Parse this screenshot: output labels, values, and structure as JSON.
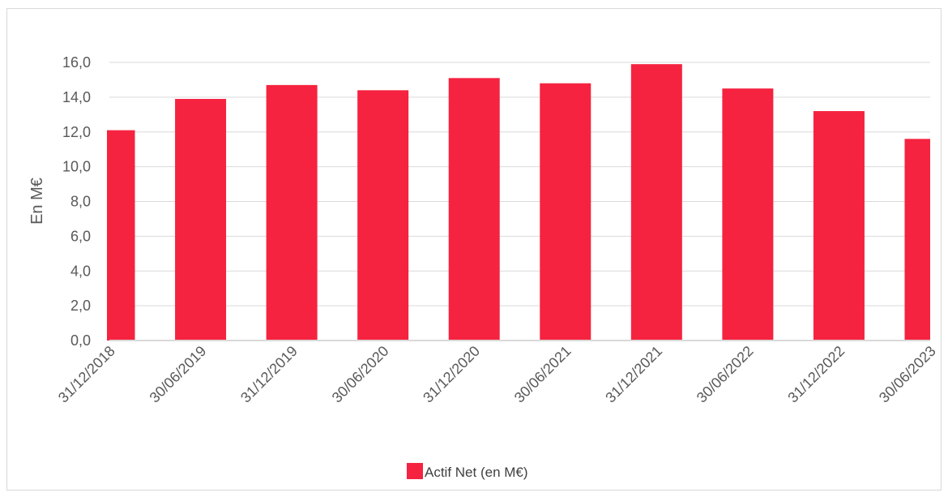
{
  "chart_data": {
    "type": "bar",
    "categories": [
      "31/12/2018",
      "30/06/2019",
      "31/12/2019",
      "30/06/2020",
      "31/12/2020",
      "30/06/2021",
      "31/12/2021",
      "30/06/2022",
      "31/12/2022",
      "30/06/2023"
    ],
    "series": [
      {
        "name": "Actif Net (en M€)",
        "values": [
          12.1,
          13.9,
          14.7,
          14.4,
          15.1,
          14.8,
          15.9,
          14.5,
          13.2,
          11.6
        ]
      }
    ],
    "yticks": [
      "0,0",
      "2,0",
      "4,0",
      "6,0",
      "8,0",
      "10,0",
      "12,0",
      "14,0",
      "16,0"
    ],
    "ylabel": "En M€",
    "ylim": [
      0,
      16
    ],
    "grid": true,
    "legend_position": "bottom",
    "colors": {
      "bar": "#f52340",
      "grid": "#d9d9d9",
      "text": "#595959"
    }
  }
}
